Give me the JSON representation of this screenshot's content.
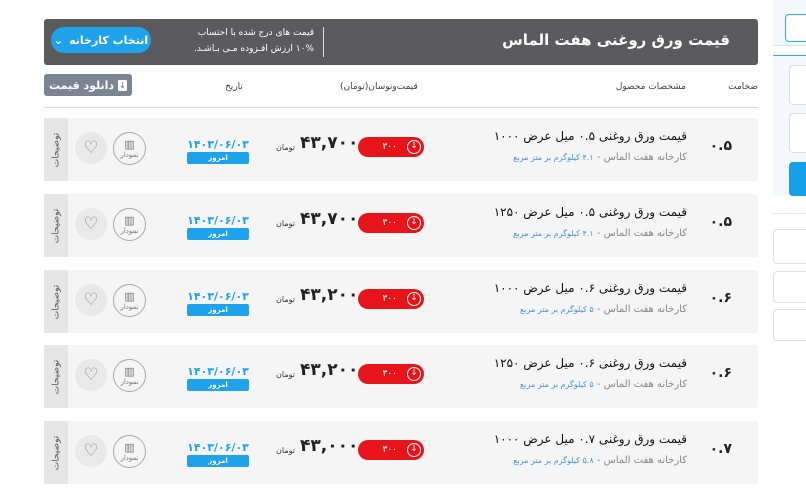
{
  "header": {
    "title": "قیمت ورق روغنی هفت الماس",
    "note_line1": "قیمت های درج شده با احتساب",
    "note_line2": "۱۰% ارزش افـزوده مـی بـاشـد.",
    "select_factory": "انتخاب کارخانه"
  },
  "toolbar": {
    "download_label": "دانلود قیمت"
  },
  "columns": {
    "thickness": "ضخامت",
    "specs": "مشخصات محصول",
    "price": "قیمت‌ونوسان(تومان)",
    "date": "تاریخ"
  },
  "row_labels": {
    "unit": "تومان",
    "today": "امروز",
    "chart": "نمودار",
    "details": "توضیحات"
  },
  "colors": {
    "accent": "#1ea2ec",
    "down": "#e8141c",
    "header": "#5b5b5d"
  },
  "rows": [
    {
      "thickness": "۰.۵",
      "name": "قیمت ورق روغنی ۰.۵ میل عرض ۱۰۰۰",
      "factory": "کارخانه هفت الماس - ",
      "weight": "۴.۱ کیلوگرم بر متر مربع",
      "price": "۴۳,۷۰۰",
      "change": "۳۰۰",
      "date": "۱۴۰۳/۰۶/۰۳"
    },
    {
      "thickness": "۰.۵",
      "name": "قیمت ورق روغنی ۰.۵ میل عرض ۱۲۵۰",
      "factory": "کارخانه هفت الماس - ",
      "weight": "۴.۱ کیلوگرم بر متر مربع",
      "price": "۴۳,۷۰۰",
      "change": "۳۰۰",
      "date": "۱۴۰۳/۰۶/۰۳"
    },
    {
      "thickness": "۰.۶",
      "name": "قیمت ورق روغنی ۰.۶ میل عرض ۱۰۰۰",
      "factory": "کارخانه هفت الماس - ",
      "weight": "۵ کیلوگرم بر متر مربع",
      "price": "۴۳,۲۰۰",
      "change": "۳۰۰",
      "date": "۱۴۰۳/۰۶/۰۳"
    },
    {
      "thickness": "۰.۶",
      "name": "قیمت ورق روغنی ۰.۶ میل عرض ۱۲۵۰",
      "factory": "کارخانه هفت الماس - ",
      "weight": "۵ کیلوگرم بر متر مربع",
      "price": "۴۳,۲۰۰",
      "change": "۳۰۰",
      "date": "۱۴۰۳/۰۶/۰۳"
    },
    {
      "thickness": "۰.۷",
      "name": "قیمت ورق روغنی ۰.۷ میل عرض ۱۰۰۰",
      "factory": "کارخانه هفت الماس - ",
      "weight": "۵.۸ کیلوگرم بر متر مربع",
      "price": "۴۳,۰۰۰",
      "change": "۳۰۰",
      "date": "۱۴۰۳/۰۶/۰۳"
    }
  ]
}
